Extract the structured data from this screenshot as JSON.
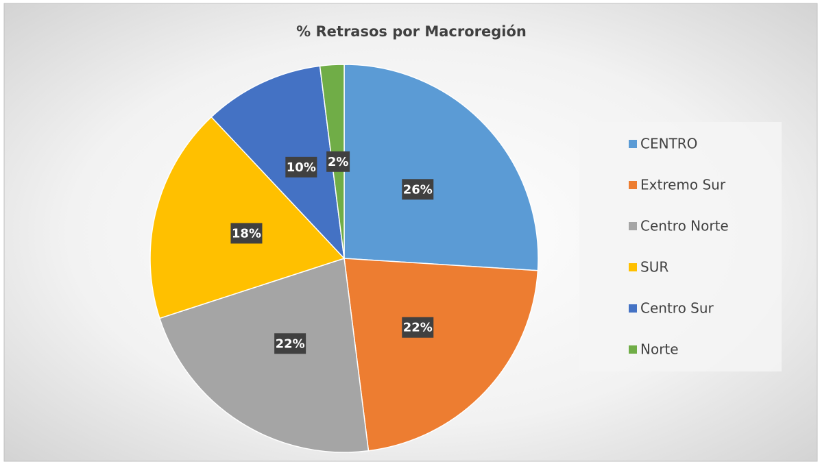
{
  "chart_data": {
    "type": "pie",
    "title": "% Retrasos por Macroregión",
    "categories": [
      "CENTRO",
      "Extremo Sur",
      "Centro Norte",
      "SUR",
      "Centro Sur",
      "Norte"
    ],
    "values": [
      26,
      22,
      22,
      18,
      10,
      2
    ],
    "value_labels": [
      "26%",
      "22%",
      "22%",
      "18%",
      "10%",
      "2%"
    ],
    "colors": [
      "#5b9bd5",
      "#ed7d31",
      "#a5a5a5",
      "#ffc000",
      "#4472c4",
      "#70ad47"
    ],
    "legend": "right"
  }
}
